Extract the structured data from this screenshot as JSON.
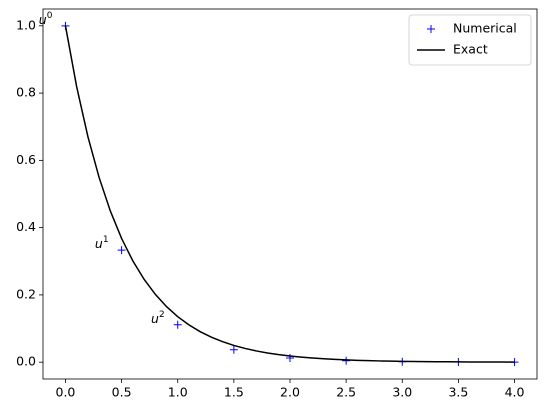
{
  "chart_data": {
    "type": "line",
    "series": [
      {
        "name": "Numerical",
        "color": "#0000ff",
        "marker": "+",
        "line": false,
        "x": [
          0,
          0.5,
          1,
          1.5,
          2,
          2.5,
          3,
          3.5,
          4
        ],
        "values": [
          1,
          0.3333,
          0.1111,
          0.037,
          0.0123,
          0.0041,
          0.0014,
          0.0005,
          0.0002
        ]
      },
      {
        "name": "Exact",
        "color": "#000000",
        "marker": null,
        "line": true,
        "x": [
          0,
          0.1,
          0.2,
          0.3,
          0.4,
          0.5,
          0.6,
          0.7,
          0.8,
          0.9,
          1,
          1.1,
          1.2,
          1.3,
          1.4,
          1.5,
          1.6,
          1.7,
          1.8,
          1.9,
          2,
          2.1,
          2.2,
          2.3,
          2.4,
          2.5,
          2.6,
          2.7,
          2.8,
          2.9,
          3,
          3.1,
          3.2,
          3.3,
          3.4,
          3.5,
          3.6,
          3.7,
          3.8,
          3.9,
          4
        ],
        "values": [
          1,
          0.8187,
          0.6703,
          0.5488,
          0.4493,
          0.3679,
          0.3012,
          0.2466,
          0.2019,
          0.1653,
          0.1353,
          0.1108,
          0.0907,
          0.0743,
          0.0608,
          0.0498,
          0.0408,
          0.0334,
          0.0273,
          0.0224,
          0.0183,
          0.015,
          0.0123,
          0.0101,
          0.0082,
          0.0067,
          0.0055,
          0.0045,
          0.0037,
          0.003,
          0.0025,
          0.002,
          0.0017,
          0.0014,
          0.0011,
          0.0009,
          0.0007,
          0.0006,
          0.0005,
          0.0004,
          0.0003
        ]
      }
    ],
    "annotations": [
      {
        "base": "u",
        "sup": "0"
      },
      {
        "base": "u",
        "sup": "1"
      },
      {
        "base": "u",
        "sup": "2"
      }
    ],
    "xlim": [
      -0.2,
      4.2
    ],
    "xticks": [
      {
        "value": 0,
        "label": "0.0"
      },
      {
        "value": 0.5,
        "label": "0.5"
      },
      {
        "value": 1,
        "label": "1.0"
      },
      {
        "value": 1.5,
        "label": "1.5"
      },
      {
        "value": 2,
        "label": "2.0"
      },
      {
        "value": 2.5,
        "label": "2.5"
      },
      {
        "value": 3,
        "label": "3.0"
      },
      {
        "value": 3.5,
        "label": "3.5"
      },
      {
        "value": 4,
        "label": "4.0"
      }
    ],
    "ylim": [
      -0.05,
      1.05
    ],
    "yticks": [
      {
        "value": 0,
        "label": "0.0"
      },
      {
        "value": 0.2,
        "label": "0.2"
      },
      {
        "value": 0.4,
        "label": "0.4"
      },
      {
        "value": 0.6,
        "label": "0.6"
      },
      {
        "value": 0.8,
        "label": "0.8"
      },
      {
        "value": 1,
        "label": "1.0"
      }
    ],
    "grid": false,
    "legend": "upper right"
  }
}
